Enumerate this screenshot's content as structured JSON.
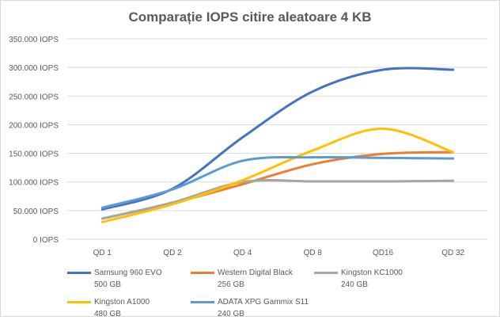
{
  "chart_data": {
    "type": "line",
    "title": "Comparație IOPS citire aleatoare 4 KB",
    "categories": [
      "QD 1",
      "QD 2",
      "QD 4",
      "QD 8",
      "QD16",
      "QD 32"
    ],
    "ylim": [
      0,
      350000
    ],
    "yticks": [
      {
        "value": 0,
        "label": "0 IOPS"
      },
      {
        "value": 50000,
        "label": "50.000 IOPS"
      },
      {
        "value": 100000,
        "label": "100.000 IOPS"
      },
      {
        "value": 150000,
        "label": "150.000 IOPS"
      },
      {
        "value": 200000,
        "label": "200.000 IOPS"
      },
      {
        "value": 250000,
        "label": "250.000 IOPS"
      },
      {
        "value": 300000,
        "label": "300.000 IOPS"
      },
      {
        "value": 350000,
        "label": "350.000 IOPS"
      }
    ],
    "grid": true,
    "legend": "bottom",
    "series": [
      {
        "name": "Samsung 960 EVO",
        "detail": "500 GB",
        "color": "#4472c4",
        "values": [
          52000,
          88000,
          178000,
          258000,
          296000,
          296000
        ]
      },
      {
        "name": "Western Digital Black",
        "detail": "256 GB",
        "color": "#ed7d31",
        "values": [
          36000,
          63000,
          96000,
          131000,
          149000,
          152000
        ]
      },
      {
        "name": "Kingston KC1000",
        "detail": "240 GB",
        "color": "#a5a5a5",
        "values": [
          36000,
          64000,
          100000,
          101000,
          101000,
          102000
        ]
      },
      {
        "name": "Kingston A1000",
        "detail": "480 GB",
        "color": "#ffc000",
        "values": [
          30000,
          61000,
          103000,
          155000,
          193000,
          152000
        ]
      },
      {
        "name": "ADATA XPG Gammix S11",
        "detail": "240 GB",
        "color": "#5b9bd5",
        "values": [
          55000,
          87000,
          137000,
          143000,
          142000,
          141000
        ]
      }
    ]
  }
}
